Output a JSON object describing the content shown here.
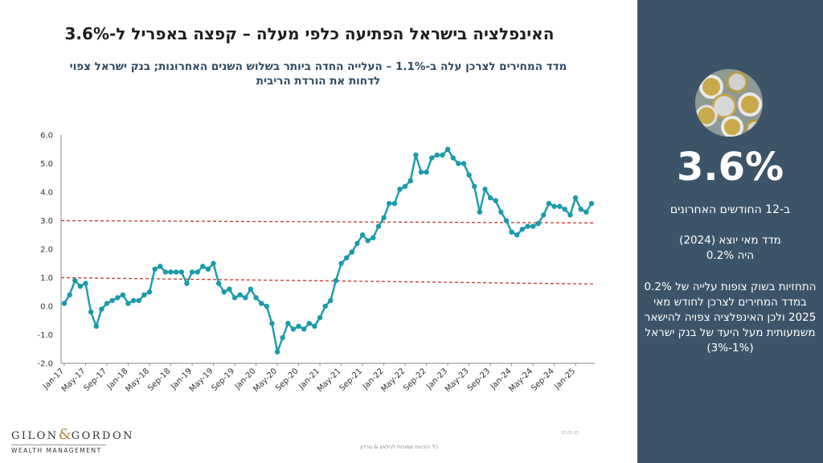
{
  "slide": {
    "title": "האינפלציה בישראל הפתיעה כלפי מעלה – קפצה באפריל ל-3.6%",
    "subtitle_line1": "מדד המחירים לצרכן עלה ב-1.1% – העלייה החדה ביותר בשלוש השנים האחרונות; בנק ישראל צפוי",
    "subtitle_line2": "לדחות את הורדת הריבית"
  },
  "side": {
    "big_number": "3.6%",
    "big_label": "ב-12 החודשים האחרונים",
    "note1_line1": "מדד מאי יוצא (2024)",
    "note1_line2": "היה 0.2%",
    "note2": "התחזיות בשוק צופות עלייה של 0.2% במדד המחירים לצרכן לחודש מאי 2025 ולכן האינפלציה צפויה להישאר משמעותית מעל היעד של בנק ישראל (1%-3%)",
    "coin_image": "coins-photo"
  },
  "logo": {
    "name_left": "GILON",
    "amp": "&",
    "name_right": "GORDON",
    "tagline": "WEALTH MANAGEMENT"
  },
  "footer": {
    "rights": "כל הזכויות שמורות לגילאון & גורדון",
    "date": "15.05.25"
  },
  "colors": {
    "line": "#1a9aab",
    "band": "#c0392b",
    "panel": "#3d5468",
    "title_sub": "#2f4a63"
  },
  "chart_data": {
    "type": "line",
    "title": "",
    "xlabel": "",
    "ylabel": "",
    "ylim": [
      -2.0,
      6.0
    ],
    "yticks": [
      "6.0",
      "5.0",
      "4.0",
      "3.0",
      "2.0",
      "1.0",
      "0.0",
      "-1.0",
      "-2.0"
    ],
    "xtick_labels": [
      "Jan-17",
      "May-17",
      "Sep-17",
      "Jan-18",
      "May-18",
      "Sep-18",
      "Jan-19",
      "May-19",
      "Sep-19",
      "Jan-20",
      "May-20",
      "Sep-20",
      "Jan-21",
      "May-21",
      "Sep-21",
      "Jan-22",
      "May-22",
      "Sep-22",
      "Jan-23",
      "May-23",
      "Sep-23",
      "Jan-24",
      "May-24",
      "Sep-24",
      "Jan-25"
    ],
    "start_month": "Jan-17",
    "series": [
      {
        "values": [
          0.1,
          0.4,
          0.9,
          0.7,
          0.8,
          -0.2,
          -0.7,
          -0.1,
          0.1,
          0.2,
          0.3,
          0.4,
          0.1,
          0.2,
          0.2,
          0.4,
          0.5,
          1.3,
          1.4,
          1.2,
          1.2,
          1.2,
          1.2,
          0.8,
          1.2,
          1.2,
          1.4,
          1.3,
          1.5,
          0.8,
          0.5,
          0.6,
          0.3,
          0.4,
          0.3,
          0.6,
          0.3,
          0.1,
          0.0,
          -0.6,
          -1.6,
          -1.1,
          -0.6,
          -0.8,
          -0.7,
          -0.8,
          -0.6,
          -0.7,
          -0.4,
          0.0,
          0.2,
          0.9,
          1.5,
          1.7,
          1.9,
          2.2,
          2.5,
          2.3,
          2.4,
          2.8,
          3.1,
          3.6,
          3.6,
          4.1,
          4.2,
          4.4,
          5.3,
          4.7,
          4.7,
          5.2,
          5.3,
          5.3,
          5.5,
          5.2,
          5.0,
          5.0,
          4.6,
          4.2,
          3.3,
          4.1,
          3.8,
          3.7,
          3.3,
          3.0,
          2.6,
          2.5,
          2.7,
          2.8,
          2.8,
          2.9,
          3.2,
          3.6,
          3.5,
          3.5,
          3.4,
          3.2,
          3.8,
          3.4,
          3.3,
          3.6
        ]
      }
    ],
    "target_band": [
      1.0,
      3.0
    ],
    "band_style": "dashed"
  }
}
